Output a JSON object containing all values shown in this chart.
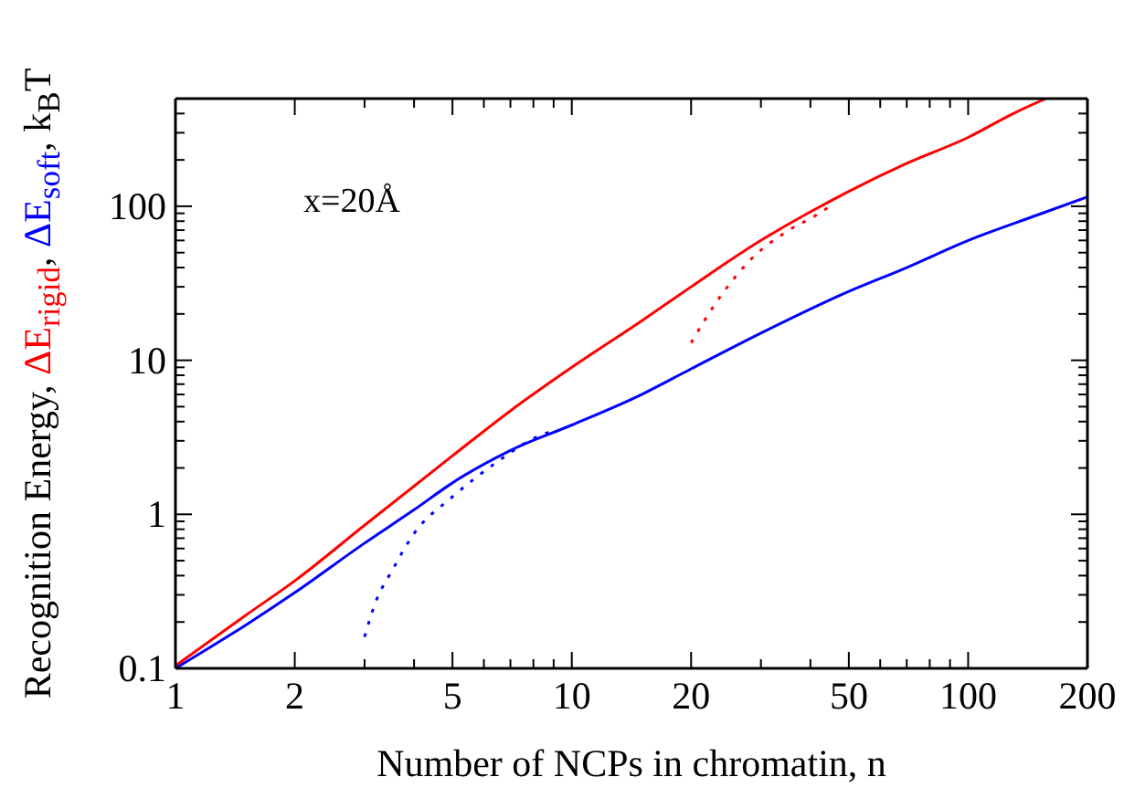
{
  "chart_data": {
    "type": "line",
    "xlabel": "Number of NCPs in chromatin, n",
    "ylabel": "Recognition Energy, ΔE$_{rigid}$, ΔE$_{soft}$, k$_{B}$T",
    "annotations": [
      "x=20Å"
    ],
    "log": "xy",
    "marker": "none",
    "xlim": [
      1,
      200
    ],
    "ylim": [
      0.1,
      500
    ],
    "xticks": [
      1,
      2,
      {
        "value": 3,
        "label": null
      },
      {
        "value": 4,
        "label": null
      },
      5,
      {
        "value": 6,
        "label": null
      },
      {
        "value": 7,
        "label": null
      },
      {
        "value": 8,
        "label": null
      },
      {
        "value": 9,
        "label": null
      },
      10,
      20,
      {
        "value": 30,
        "label": null
      },
      {
        "value": 40,
        "label": null
      },
      50,
      {
        "value": 60,
        "label": null
      },
      {
        "value": 70,
        "label": null
      },
      {
        "value": 80,
        "label": null
      },
      {
        "value": 90,
        "label": null
      },
      100,
      200
    ],
    "yticks": [
      0.1,
      {
        "value": 0.2,
        "label": null
      },
      {
        "value": 0.3,
        "label": null
      },
      {
        "value": 0.4,
        "label": null
      },
      {
        "value": 0.5,
        "label": null
      },
      {
        "value": 0.6,
        "label": null
      },
      {
        "value": 0.7,
        "label": null
      },
      {
        "value": 0.8,
        "label": null
      },
      {
        "value": 0.9,
        "label": null
      },
      1,
      {
        "value": 2,
        "label": null
      },
      {
        "value": 3,
        "label": null
      },
      {
        "value": 4,
        "label": null
      },
      {
        "value": 5,
        "label": null
      },
      {
        "value": 6,
        "label": null
      },
      {
        "value": 7,
        "label": null
      },
      {
        "value": 8,
        "label": null
      },
      {
        "value": 9,
        "label": null
      },
      10,
      {
        "value": 20,
        "label": null
      },
      {
        "value": 30,
        "label": null
      },
      {
        "value": 40,
        "label": null
      },
      {
        "value": 50,
        "label": null
      },
      {
        "value": 60,
        "label": null
      },
      {
        "value": 70,
        "label": null
      },
      {
        "value": 80,
        "label": null
      },
      {
        "value": 90,
        "label": null
      },
      100,
      {
        "value": 200,
        "label": null
      },
      {
        "value": 300,
        "label": null
      },
      {
        "value": 400,
        "label": null
      }
    ],
    "series": [
      {
        "color": "#ff0000",
        "line_style": "solid",
        "x": [
          1,
          1.5,
          2,
          3,
          5,
          7,
          10,
          15,
          20,
          30,
          40,
          50,
          70,
          100,
          130,
          157
        ],
        "values": [
          0.104,
          0.22,
          0.37,
          0.85,
          2.4,
          4.7,
          9,
          18,
          30,
          60,
          92,
          125,
          190,
          280,
          400,
          500
        ]
      },
      {
        "color": "#0000ff",
        "line_style": "solid",
        "x": [
          1,
          1.5,
          2,
          3,
          4,
          5,
          7,
          10,
          15,
          20,
          30,
          50,
          70,
          100,
          150,
          200
        ],
        "values": [
          0.1,
          0.19,
          0.31,
          0.65,
          1.07,
          1.6,
          2.6,
          3.8,
          6,
          8.8,
          15,
          28,
          40,
          60,
          88,
          115
        ]
      },
      {
        "color": "#ff0000",
        "line_style": "dotted",
        "x": [
          20,
          23.2,
          28.5,
          35,
          41.5,
          46
        ],
        "values": [
          13,
          24,
          46,
          69,
          88,
          105
        ]
      },
      {
        "color": "#0000ff",
        "line_style": "dotted",
        "x": [
          3,
          3.2,
          3.5,
          4,
          5,
          6.5,
          8,
          9
        ],
        "values": [
          0.16,
          0.27,
          0.42,
          0.75,
          1.3,
          2.2,
          3.1,
          3.5
        ]
      }
    ]
  }
}
